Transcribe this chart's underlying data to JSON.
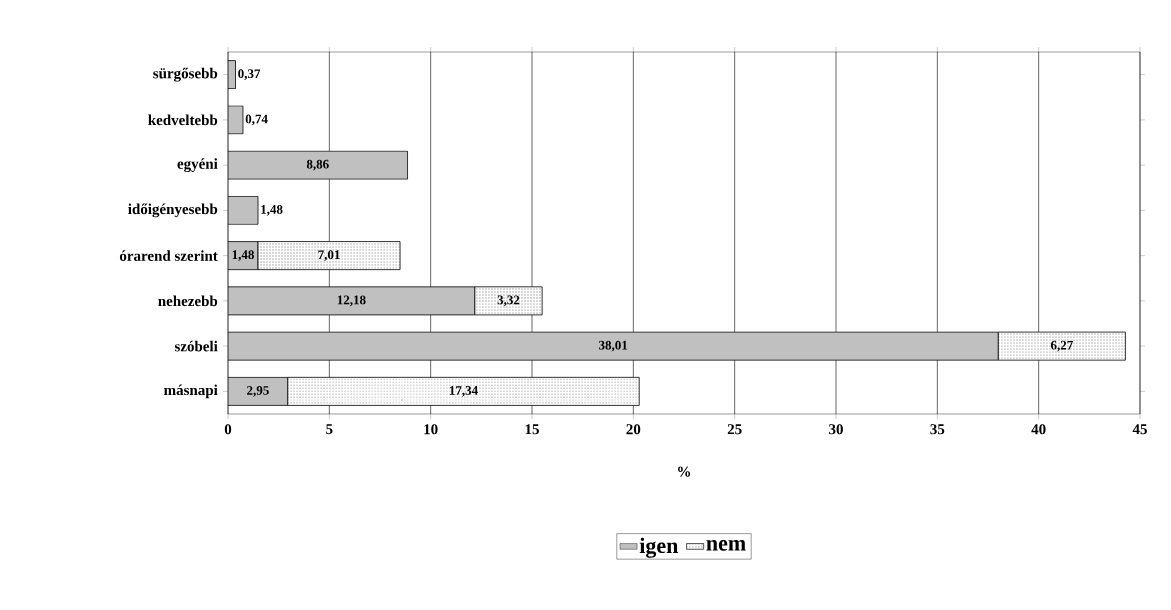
{
  "chart_data": {
    "type": "bar",
    "orientation": "horizontal",
    "stacked": true,
    "categories": [
      "sürgősebb",
      "kedveltebb",
      "egyéni",
      "időigényesebb",
      "órarend szerint",
      "nehezebb",
      "szóbeli",
      "másnapi"
    ],
    "series": [
      {
        "name": "igen",
        "color": "#c0c0c0",
        "values": [
          0.37,
          0.74,
          8.86,
          1.48,
          1.48,
          12.18,
          38.01,
          2.95
        ],
        "value_labels": [
          "0,37",
          "0,74",
          "8,86",
          "1,48",
          "1,48",
          "12,18",
          "38,01",
          "2,95"
        ]
      },
      {
        "name": "nem",
        "color": "#ffffff",
        "values": [
          null,
          null,
          null,
          null,
          7.01,
          3.32,
          6.27,
          17.34
        ],
        "value_labels": [
          null,
          null,
          null,
          null,
          "7,01",
          "3,32",
          "6,27",
          "17,34"
        ]
      }
    ],
    "xlim": [
      0,
      45
    ],
    "xticks": [
      0,
      5,
      10,
      15,
      20,
      25,
      30,
      35,
      40,
      45
    ],
    "xlabel": "%",
    "grid": "x",
    "legend": "bottom"
  }
}
